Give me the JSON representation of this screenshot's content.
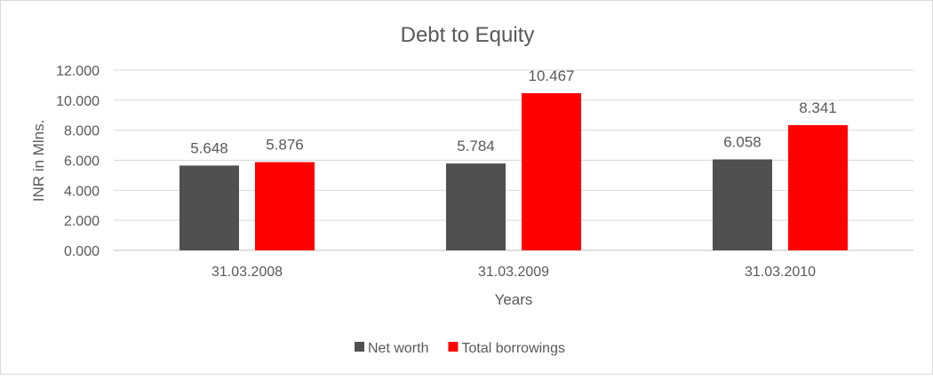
{
  "chart_data": {
    "type": "bar",
    "title": "Debt to Equity",
    "xlabel": "Years",
    "ylabel": "INR in Mlns.",
    "categories": [
      "31.03.2008",
      "31.03.2009",
      "31.03.2010"
    ],
    "series": [
      {
        "name": "Net worth",
        "color": "#505050",
        "values": [
          5.648,
          5.784,
          6.058
        ],
        "labels": [
          "5.648",
          "5.784",
          "6.058"
        ]
      },
      {
        "name": "Total borrowings",
        "color": "#ff0000",
        "values": [
          5.876,
          10.467,
          8.341
        ],
        "labels": [
          "5.876",
          "10.467",
          "8.341"
        ]
      }
    ],
    "ylim": [
      0,
      12
    ],
    "yticks": [
      "0.000",
      "2.000",
      "4.000",
      "6.000",
      "8.000",
      "10.000",
      "12.000"
    ],
    "grid": true,
    "legend": "bottom"
  }
}
